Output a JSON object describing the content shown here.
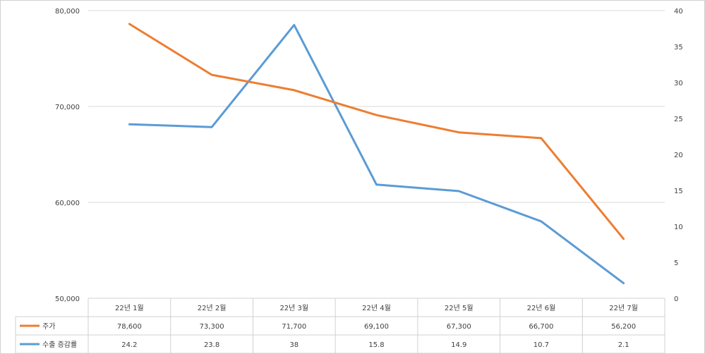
{
  "chart_data": {
    "type": "line",
    "categories": [
      "22년 1월",
      "22년 2월",
      "22년 3월",
      "22년 4월",
      "22년 5월",
      "22년 6월",
      "22년 7월"
    ],
    "series": [
      {
        "name": "주가",
        "axis": "left",
        "color": "#ED7D31",
        "values": [
          78600,
          73300,
          71700,
          69100,
          67300,
          66700,
          56200
        ],
        "labels": [
          "78,600",
          "73,300",
          "71,700",
          "69,100",
          "67,300",
          "66,700",
          "56,200"
        ]
      },
      {
        "name": "수출 증감률",
        "axis": "right",
        "color": "#5B9BD5",
        "values": [
          24.2,
          23.8,
          38,
          15.8,
          14.9,
          10.7,
          2.1
        ],
        "labels": [
          "24.2",
          "23.8",
          "38",
          "15.8",
          "14.9",
          "10.7",
          "2.1"
        ]
      }
    ],
    "y_left": {
      "range": [
        50000,
        80000
      ],
      "ticks": [
        50000,
        60000,
        70000,
        80000
      ],
      "tick_labels": [
        "50,000",
        "60,000",
        "70,000",
        "80,000"
      ]
    },
    "y_right": {
      "range": [
        0,
        40
      ],
      "ticks": [
        0,
        5,
        10,
        15,
        20,
        25,
        30,
        35,
        40
      ],
      "tick_labels": [
        "0",
        "5",
        "10",
        "15",
        "20",
        "25",
        "30",
        "35",
        "40"
      ]
    },
    "gridlines": true,
    "legend": "data-table-below"
  }
}
